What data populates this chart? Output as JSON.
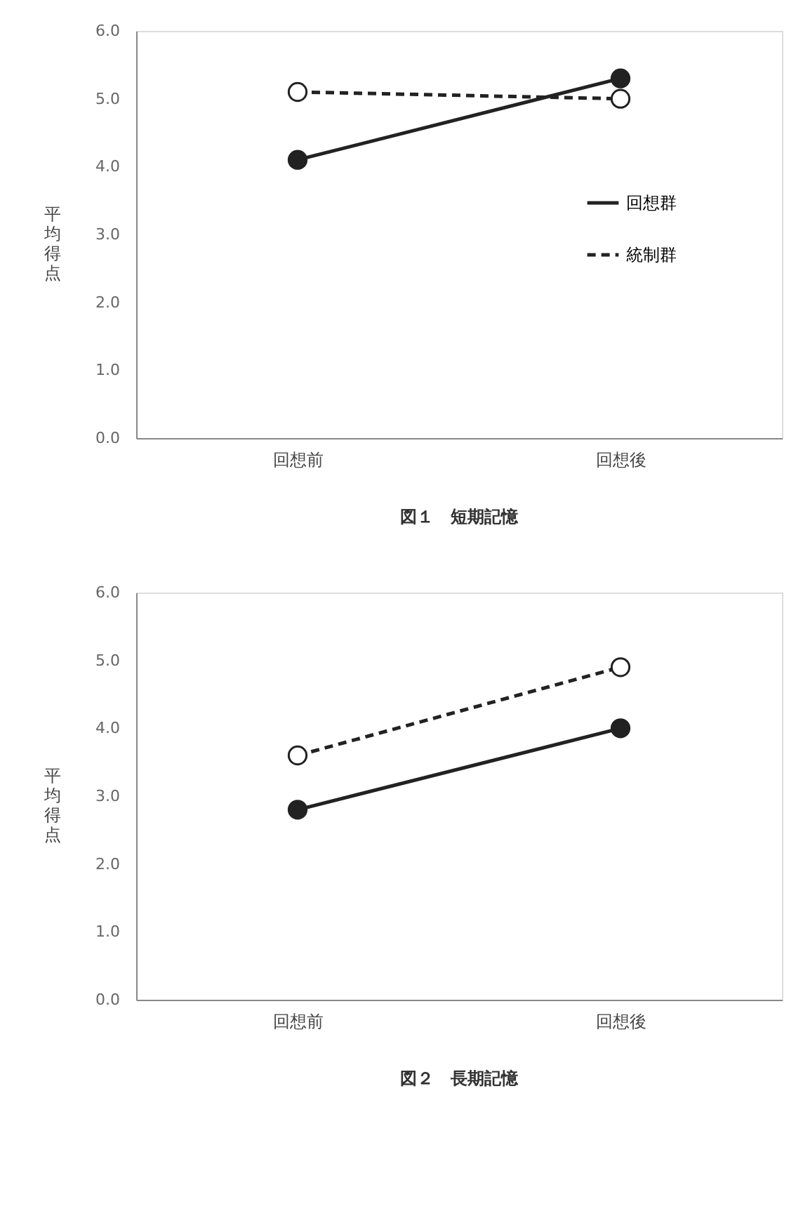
{
  "chart_data": [
    {
      "type": "line",
      "title": "図１　短期記憶",
      "ylabel": "平均得点",
      "categories": [
        "回想前",
        "回想後"
      ],
      "ylim": [
        0,
        6
      ],
      "yticks": [
        {
          "value": 0,
          "label": "0.0"
        },
        {
          "value": 1,
          "label": "1.0"
        },
        {
          "value": 2,
          "label": "2.0"
        },
        {
          "value": 3,
          "label": "3.0"
        },
        {
          "value": 4,
          "label": "4.0"
        },
        {
          "value": 5,
          "label": "5.0"
        },
        {
          "value": 6,
          "label": "6.0"
        }
      ],
      "grid": false,
      "legend": "right",
      "marker": "circle",
      "series": [
        {
          "name": "回想群",
          "color": "#222222",
          "line_style": "solid",
          "values": [
            4.1,
            5.3
          ]
        },
        {
          "name": "統制群",
          "color": "#222222",
          "line_style": "dashed",
          "values": [
            5.1,
            5.0
          ]
        }
      ]
    },
    {
      "type": "line",
      "title": "図２　長期記憶",
      "ylabel": "平均得点",
      "categories": [
        "回想前",
        "回想後"
      ],
      "ylim": [
        0,
        6
      ],
      "yticks": [
        {
          "value": 0,
          "label": "0.0"
        },
        {
          "value": 1,
          "label": "1.0"
        },
        {
          "value": 2,
          "label": "2.0"
        },
        {
          "value": 3,
          "label": "3.0"
        },
        {
          "value": 4,
          "label": "4.0"
        },
        {
          "value": 5,
          "label": "5.0"
        },
        {
          "value": 6,
          "label": "6.0"
        }
      ],
      "grid": false,
      "legend": "right",
      "marker": "circle",
      "series": [
        {
          "name": "回想群",
          "color": "#222222",
          "line_style": "solid",
          "values": [
            2.8,
            4.0
          ]
        },
        {
          "name": "統制群",
          "color": "#222222",
          "line_style": "dashed",
          "values": [
            3.6,
            4.9
          ]
        }
      ]
    }
  ]
}
